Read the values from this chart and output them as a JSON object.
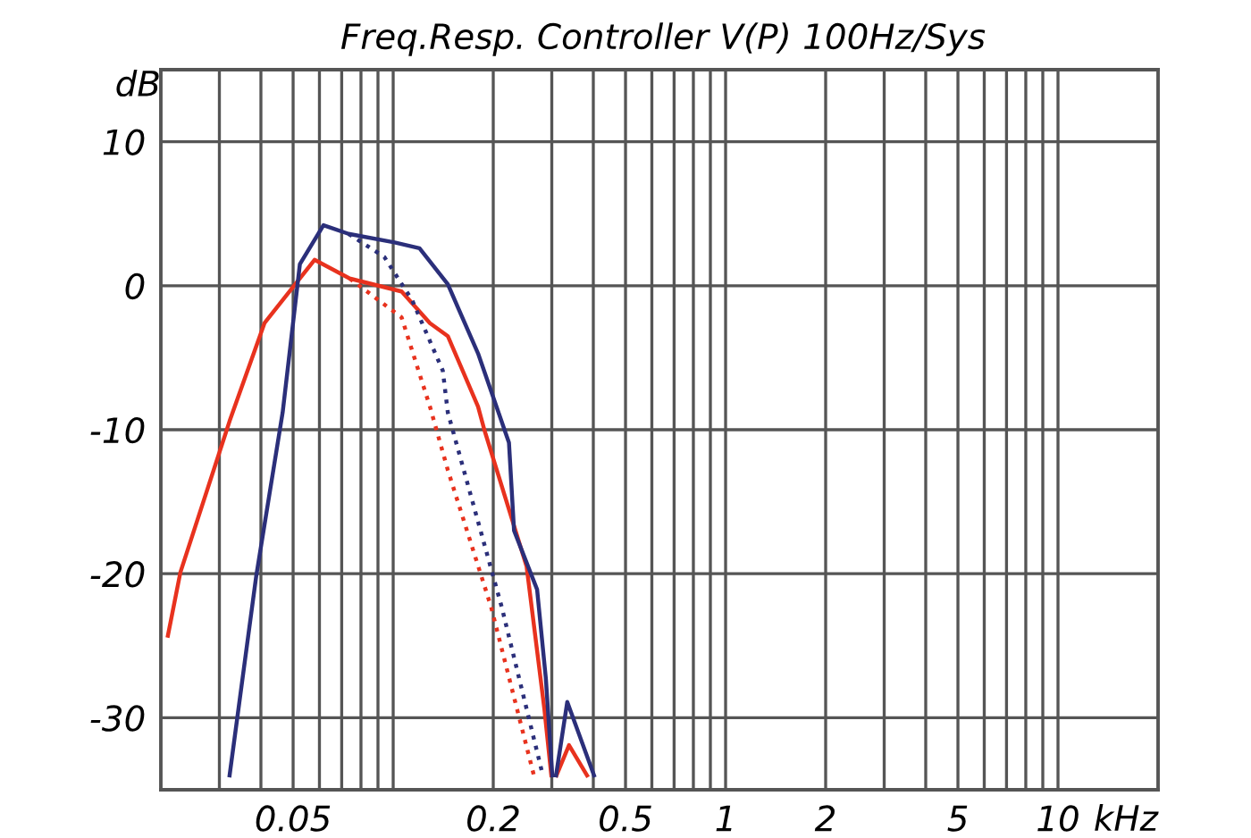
{
  "chart_data": {
    "type": "line",
    "title": "Freq.Resp. Controller V(P) 100Hz/Sys",
    "xlabel": "kHz",
    "ylabel": "dB",
    "log": "x",
    "grid": true,
    "legend": false,
    "xlim": [
      0.02,
      20
    ],
    "ylim": [
      -35,
      15
    ],
    "yticks": [
      -30,
      -20,
      -10,
      0,
      10
    ],
    "xticks": [
      {
        "value": 0.03,
        "label": null
      },
      {
        "value": 0.04,
        "label": null
      },
      {
        "value": 0.05,
        "label": "0.05"
      },
      {
        "value": 0.06,
        "label": null
      },
      {
        "value": 0.07,
        "label": null
      },
      {
        "value": 0.08,
        "label": null
      },
      {
        "value": 0.09,
        "label": null
      },
      {
        "value": 0.1,
        "label": null
      },
      {
        "value": 0.2,
        "label": "0.2"
      },
      {
        "value": 0.3,
        "label": null
      },
      {
        "value": 0.4,
        "label": null
      },
      {
        "value": 0.5,
        "label": "0.5"
      },
      {
        "value": 0.6,
        "label": null
      },
      {
        "value": 0.7,
        "label": null
      },
      {
        "value": 0.8,
        "label": null
      },
      {
        "value": 0.9,
        "label": null
      },
      1,
      2,
      {
        "value": 3,
        "label": null
      },
      {
        "value": 4,
        "label": null
      },
      5,
      {
        "value": 6,
        "label": null
      },
      {
        "value": 7,
        "label": null
      },
      {
        "value": 8,
        "label": null
      },
      {
        "value": 9,
        "label": null
      },
      10
    ],
    "series": [
      {
        "color": "#e8321e",
        "line_style": "solid",
        "x": [
          0.021,
          0.0229,
          0.0322,
          0.041,
          0.058,
          0.074,
          0.106,
          0.129,
          0.146,
          0.18,
          0.188,
          0.252,
          0.285,
          0.299,
          0.303,
          0.31,
          0.338,
          0.383
        ],
        "values": [
          -24.3,
          -19.9,
          -9.4,
          -2.6,
          1.8,
          0.5,
          -0.4,
          -2.6,
          -3.5,
          -8.4,
          -10,
          -19.5,
          -29.4,
          -34,
          null,
          -34,
          -31.9,
          -34
        ]
      },
      {
        "color": "#e8321e",
        "line_style": "dotted",
        "x": [
          0.074,
          0.106,
          0.129,
          0.146,
          0.197,
          0.265
        ],
        "values": [
          0.5,
          -2.2,
          -8.4,
          -12.8,
          -22.3,
          -34
        ]
      },
      {
        "color": "#2b2f7a",
        "line_style": "solid",
        "x": [
          0.0322,
          0.0387,
          0.0465,
          0.0524,
          0.0617,
          0.0734,
          0.101,
          0.12,
          0.146,
          0.18,
          0.223,
          0.231,
          0.271,
          0.288,
          0.301,
          0.303,
          0.309,
          0.334,
          0.402
        ],
        "values": [
          -34,
          -20.2,
          -8.8,
          1.5,
          4.2,
          3.6,
          3.0,
          2.6,
          0.1,
          -4.7,
          -10.9,
          -17,
          -21.1,
          -27.3,
          -34,
          null,
          -34,
          -28.9,
          -34
        ]
      },
      {
        "color": "#2b2f7a",
        "line_style": "dotted",
        "x": [
          0.0734,
          0.094,
          0.114,
          0.141,
          0.146,
          0.212,
          0.282
        ],
        "values": [
          3.6,
          2.0,
          -1.0,
          -5.9,
          -8.8,
          -22.3,
          -34
        ]
      }
    ]
  }
}
